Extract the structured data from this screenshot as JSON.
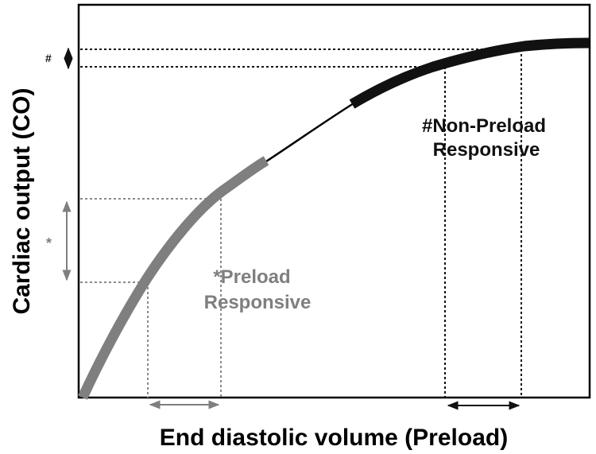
{
  "axes": {
    "x_label": "End diastolic volume (Preload)",
    "y_label": "Cardiac output (CO)"
  },
  "annotations": {
    "preload_marker": "*",
    "preload_text_line1": "*Preload",
    "preload_text_line2": "Responsive",
    "nonpreload_marker": "#",
    "nonpreload_text_line1": "#Non-Preload",
    "nonpreload_text_line2": "Responsive"
  },
  "colors": {
    "preload_segment": "#7f7f7f",
    "nonpreload_segment": "#111111",
    "curve": "#000000",
    "axis": "#000000"
  }
}
